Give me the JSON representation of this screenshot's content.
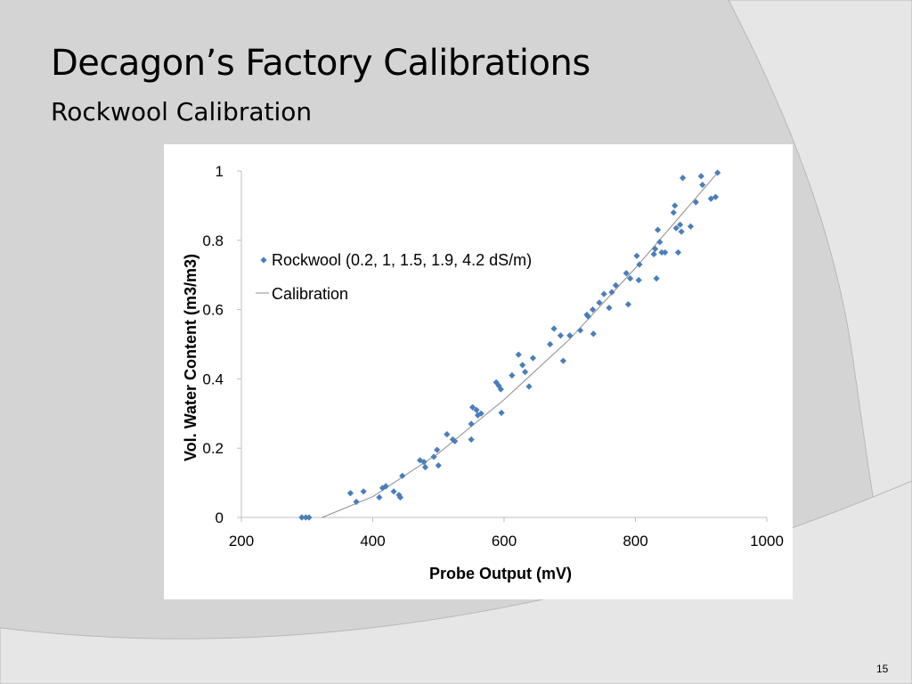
{
  "slide": {
    "title": "Decagon’s Factory Calibrations",
    "subtitle": "Rockwool Calibration",
    "number": "15"
  },
  "colors": {
    "background": "#d4d4d4",
    "swoosh": "#e6e6e6",
    "swoosh_edge": "#b8b8b8",
    "marker": "#4a7ebb",
    "calibration_line": "#8c8c8c",
    "axis": "#bfbfbf"
  },
  "chart_data": {
    "type": "scatter",
    "xlabel": "Probe Output (mV)",
    "ylabel": "Vol. Water Content (m3/m3)",
    "xlim": [
      200,
      1000
    ],
    "ylim": [
      0,
      1
    ],
    "x_ticks": [
      "200",
      "400",
      "600",
      "800",
      "1000"
    ],
    "y_ticks": [
      "0",
      "0.2",
      "0.4",
      "0.6",
      "0.8",
      "1"
    ],
    "grid": false,
    "legend_position": "top-left inside plot",
    "series": [
      {
        "name": "Rockwool (0.2, 1, 1.5, 1.9, 4.2 dS/m)",
        "marker": "diamond",
        "points": [
          [
            292,
            0.0
          ],
          [
            298,
            0.0
          ],
          [
            303,
            0.0
          ],
          [
            366,
            0.07
          ],
          [
            375,
            0.045
          ],
          [
            386,
            0.075
          ],
          [
            410,
            0.058
          ],
          [
            415,
            0.085
          ],
          [
            420,
            0.09
          ],
          [
            432,
            0.075
          ],
          [
            440,
            0.065
          ],
          [
            442,
            0.058
          ],
          [
            445,
            0.12
          ],
          [
            472,
            0.165
          ],
          [
            478,
            0.16
          ],
          [
            480,
            0.145
          ],
          [
            493,
            0.175
          ],
          [
            498,
            0.195
          ],
          [
            500,
            0.15
          ],
          [
            513,
            0.24
          ],
          [
            522,
            0.225
          ],
          [
            525,
            0.22
          ],
          [
            550,
            0.27
          ],
          [
            550,
            0.225
          ],
          [
            552,
            0.318
          ],
          [
            558,
            0.31
          ],
          [
            560,
            0.295
          ],
          [
            565,
            0.3
          ],
          [
            588,
            0.39
          ],
          [
            592,
            0.38
          ],
          [
            595,
            0.37
          ],
          [
            596,
            0.302
          ],
          [
            612,
            0.41
          ],
          [
            622,
            0.47
          ],
          [
            628,
            0.44
          ],
          [
            632,
            0.42
          ],
          [
            638,
            0.378
          ],
          [
            644,
            0.46
          ],
          [
            670,
            0.5
          ],
          [
            676,
            0.545
          ],
          [
            686,
            0.525
          ],
          [
            690,
            0.452
          ],
          [
            700,
            0.525
          ],
          [
            716,
            0.54
          ],
          [
            726,
            0.585
          ],
          [
            728,
            0.58
          ],
          [
            735,
            0.6
          ],
          [
            736,
            0.53
          ],
          [
            745,
            0.62
          ],
          [
            752,
            0.645
          ],
          [
            760,
            0.605
          ],
          [
            764,
            0.65
          ],
          [
            770,
            0.67
          ],
          [
            786,
            0.705
          ],
          [
            789,
            0.615
          ],
          [
            792,
            0.69
          ],
          [
            802,
            0.755
          ],
          [
            805,
            0.685
          ],
          [
            806,
            0.73
          ],
          [
            828,
            0.76
          ],
          [
            830,
            0.775
          ],
          [
            832,
            0.69
          ],
          [
            834,
            0.83
          ],
          [
            837,
            0.795
          ],
          [
            840,
            0.765
          ],
          [
            845,
            0.765
          ],
          [
            858,
            0.88
          ],
          [
            860,
            0.9
          ],
          [
            862,
            0.835
          ],
          [
            865,
            0.765
          ],
          [
            868,
            0.845
          ],
          [
            870,
            0.825
          ],
          [
            872,
            0.98
          ],
          [
            884,
            0.84
          ],
          [
            892,
            0.91
          ],
          [
            900,
            0.985
          ],
          [
            902,
            0.96
          ],
          [
            915,
            0.92
          ],
          [
            922,
            0.925
          ],
          [
            925,
            0.995
          ]
        ]
      },
      {
        "name": "Calibration",
        "type": "line",
        "points": [
          [
            323,
            0.0
          ],
          [
            400,
            0.06
          ],
          [
            500,
            0.185
          ],
          [
            600,
            0.34
          ],
          [
            700,
            0.515
          ],
          [
            800,
            0.72
          ],
          [
            900,
            0.94
          ],
          [
            925,
            0.995
          ]
        ]
      }
    ]
  }
}
